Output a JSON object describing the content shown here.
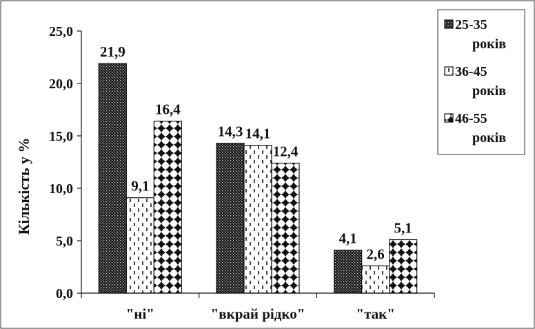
{
  "chart_data": {
    "type": "bar",
    "ylabel": "Кількість у %",
    "xlabel": "",
    "title": "",
    "categories": [
      "\"ні\"",
      "\"вкрай рідко\"",
      "\"так\""
    ],
    "series": [
      {
        "name": "25-35 років",
        "legend_lines": [
          "25-35",
          "років"
        ],
        "pattern": "dense-dots",
        "values": [
          21.9,
          14.3,
          4.1
        ]
      },
      {
        "name": "36-45 років",
        "legend_lines": [
          "36-45",
          "років"
        ],
        "pattern": "dashes",
        "values": [
          9.1,
          14.1,
          2.6
        ]
      },
      {
        "name": "46-55 років",
        "legend_lines": [
          "46-55",
          "років"
        ],
        "pattern": "crosses",
        "values": [
          16.4,
          12.4,
          5.1
        ]
      }
    ],
    "value_labels": [
      [
        "21,9",
        "14,3",
        "4,1"
      ],
      [
        "9,1",
        "14,1",
        "2,6"
      ],
      [
        "16,4",
        "12,4",
        "5,1"
      ]
    ],
    "yticks": [
      0,
      5,
      10,
      15,
      20,
      25
    ],
    "ytick_labels": [
      "0,0",
      "5,0",
      "10,0",
      "15,0",
      "20,0",
      "25,0"
    ],
    "ylim": [
      0,
      25
    ],
    "grid": false,
    "legend_position": "top-right"
  }
}
